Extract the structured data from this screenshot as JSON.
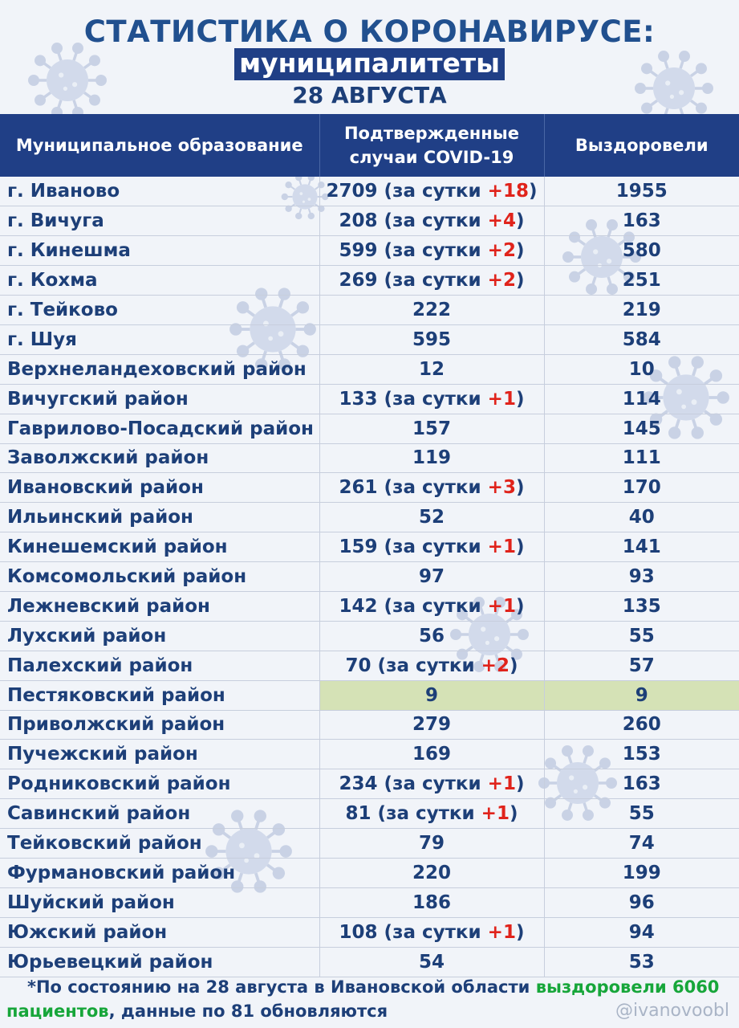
{
  "header": {
    "title": "СТАТИСТИКА О КОРОНАВИРУСЕ:",
    "subtitle": "муниципалитеты",
    "date": "28 АВГУСТА"
  },
  "columns": {
    "municipality": "Муниципальное образование",
    "confirmed": "Подтвержденные случаи COVID-19",
    "recovered": "Выздоровели"
  },
  "rows": [
    {
      "name": "г. Иваново",
      "confirmed": "2709",
      "day": "+18",
      "recovered": "1955"
    },
    {
      "name": "г. Вичуга",
      "confirmed": "208",
      "day": "+4",
      "recovered": "163"
    },
    {
      "name": "г. Кинешма",
      "confirmed": "599",
      "day": "+2",
      "recovered": "580"
    },
    {
      "name": "г. Кохма",
      "confirmed": "269",
      "day": "+2",
      "recovered": "251"
    },
    {
      "name": "г. Тейково",
      "confirmed": "222",
      "day": "",
      "recovered": "219"
    },
    {
      "name": "г. Шуя",
      "confirmed": "595",
      "day": "",
      "recovered": "584"
    },
    {
      "name": "Верхнеландеховский район",
      "confirmed": "12",
      "day": "",
      "recovered": "10"
    },
    {
      "name": "Вичугский район",
      "confirmed": "133",
      "day": "+1",
      "recovered": "114"
    },
    {
      "name": "Гаврилово-Посадский район",
      "confirmed": "157",
      "day": "",
      "recovered": "145"
    },
    {
      "name": "Заволжский район",
      "confirmed": "119",
      "day": "",
      "recovered": "111"
    },
    {
      "name": "Ивановский район",
      "confirmed": "261",
      "day": "+3",
      "recovered": "170"
    },
    {
      "name": "Ильинский район",
      "confirmed": "52",
      "day": "",
      "recovered": "40"
    },
    {
      "name": "Кинешемский район",
      "confirmed": "159",
      "day": "+1",
      "recovered": "141"
    },
    {
      "name": "Комсомольский район",
      "confirmed": "97",
      "day": "",
      "recovered": "93"
    },
    {
      "name": "Лежневский район",
      "confirmed": "142",
      "day": "+1",
      "recovered": "135"
    },
    {
      "name": "Лухский район",
      "confirmed": "56",
      "day": "",
      "recovered": "55"
    },
    {
      "name": "Палехский район",
      "confirmed": "70",
      "day": "+2",
      "recovered": "57"
    },
    {
      "name": "Пестяковский район",
      "confirmed": "9",
      "day": "",
      "recovered": "9",
      "highlight": true
    },
    {
      "name": "Приволжский район",
      "confirmed": "279",
      "day": "",
      "recovered": "260"
    },
    {
      "name": "Пучежский район",
      "confirmed": "169",
      "day": "",
      "recovered": "153"
    },
    {
      "name": "Родниковский район",
      "confirmed": "234",
      "day": "+1",
      "recovered": "163"
    },
    {
      "name": "Савинский район",
      "confirmed": "81",
      "day": "+1",
      "recovered": "55"
    },
    {
      "name": "Тейковский район",
      "confirmed": "79",
      "day": "",
      "recovered": "74"
    },
    {
      "name": "Фурмановский район",
      "confirmed": "220",
      "day": "",
      "recovered": "199"
    },
    {
      "name": "Шуйский район",
      "confirmed": "186",
      "day": "",
      "recovered": "96"
    },
    {
      "name": "Южский район",
      "confirmed": "108",
      "day": "+1",
      "recovered": "94"
    },
    {
      "name": "Юрьевецкий район",
      "confirmed": "54",
      "day": "",
      "recovered": "53"
    }
  ],
  "day_label": "за сутки",
  "footer": {
    "text_a": "*По состоянию на 28 августа в Ивановской области ",
    "highlight": "выздоровели 6060",
    "highlight2": "пациентов",
    "text_b": ", данные по 81 обновляются",
    "handle": "@ivanovoobl"
  },
  "colors": {
    "header_bg": "#203f86",
    "text": "#1d3f78",
    "increase": "#e0231b",
    "green": "#17a63a",
    "highlight_row": "#d5e2b6"
  },
  "icons": [
    "virus-icon"
  ]
}
